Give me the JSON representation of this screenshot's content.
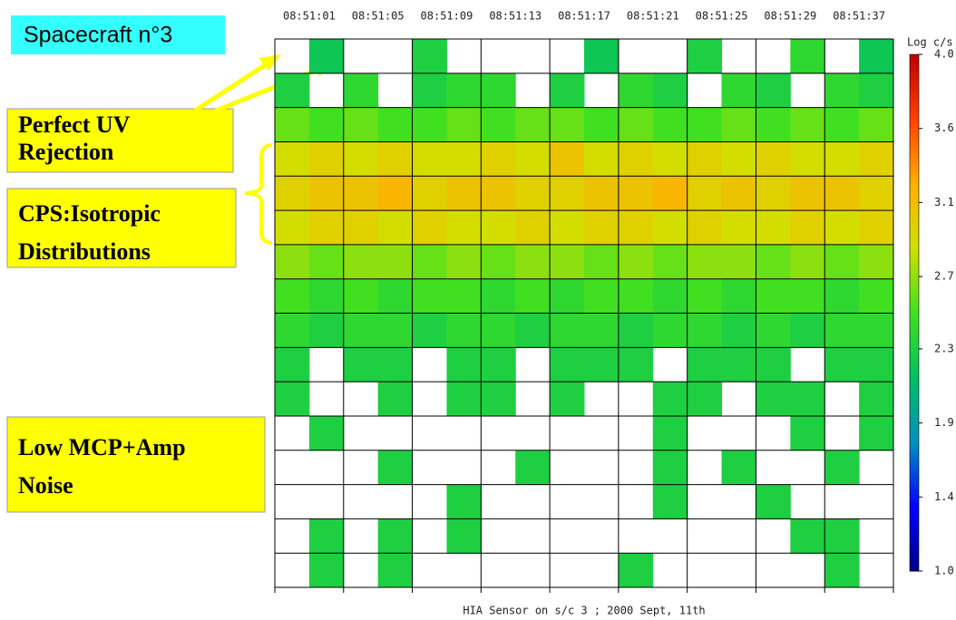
{
  "chart_data": {
    "type": "heatmap",
    "xlabel": "HIA Sensor on s/c 3 ; 2000 Sept, 11th",
    "categories": [
      "08:51:01",
      "08:51:05",
      "08:51:09",
      "08:51:13",
      "08:51:17",
      "08:51:21",
      "08:51:25",
      "08:51:29",
      "08:51:37"
    ],
    "values": [
      [
        null,
        2.2,
        null,
        null,
        2.3,
        null,
        null,
        null,
        null,
        2.2,
        null,
        null,
        2.3,
        null,
        null,
        2.4,
        null,
        2.2
      ],
      [
        2.3,
        null,
        2.4,
        null,
        2.3,
        2.4,
        2.4,
        null,
        2.3,
        null,
        2.4,
        2.3,
        null,
        2.4,
        2.3,
        null,
        2.4,
        2.3
      ],
      [
        2.6,
        2.5,
        2.6,
        2.5,
        2.5,
        2.6,
        2.5,
        2.6,
        2.6,
        2.5,
        2.6,
        2.5,
        2.5,
        2.6,
        2.5,
        2.6,
        2.5,
        2.6
      ],
      [
        2.9,
        3.0,
        2.9,
        3.0,
        2.9,
        2.9,
        3.0,
        2.9,
        3.1,
        2.9,
        3.0,
        2.9,
        3.0,
        2.9,
        3.0,
        2.9,
        2.9,
        3.0
      ],
      [
        3.0,
        3.1,
        3.1,
        3.2,
        3.0,
        3.1,
        3.1,
        3.0,
        3.0,
        3.1,
        3.1,
        3.2,
        3.0,
        3.1,
        3.0,
        3.1,
        3.1,
        3.0
      ],
      [
        2.9,
        3.0,
        3.0,
        2.9,
        3.0,
        2.9,
        2.9,
        3.0,
        2.9,
        3.0,
        3.0,
        2.9,
        3.0,
        2.9,
        2.9,
        3.0,
        2.9,
        3.0
      ],
      [
        2.7,
        2.6,
        2.7,
        2.7,
        2.6,
        2.7,
        2.6,
        2.7,
        2.7,
        2.6,
        2.7,
        2.6,
        2.7,
        2.7,
        2.6,
        2.7,
        2.6,
        2.7
      ],
      [
        2.5,
        2.4,
        2.5,
        2.4,
        2.5,
        2.5,
        2.4,
        2.5,
        2.4,
        2.5,
        2.5,
        2.4,
        2.5,
        2.4,
        2.5,
        2.5,
        2.4,
        2.5
      ],
      [
        2.4,
        2.3,
        2.4,
        2.4,
        2.3,
        2.4,
        2.4,
        2.3,
        2.4,
        2.4,
        2.3,
        2.4,
        2.4,
        2.3,
        2.4,
        2.3,
        2.4,
        2.4
      ],
      [
        2.3,
        null,
        2.3,
        2.3,
        null,
        2.3,
        2.3,
        null,
        2.3,
        2.3,
        2.3,
        null,
        2.3,
        2.3,
        2.3,
        null,
        2.3,
        2.3
      ],
      [
        2.3,
        null,
        null,
        2.3,
        null,
        2.3,
        2.3,
        null,
        2.3,
        null,
        null,
        2.3,
        2.3,
        null,
        2.3,
        2.3,
        null,
        2.3
      ],
      [
        null,
        2.3,
        null,
        null,
        null,
        null,
        null,
        null,
        null,
        null,
        null,
        2.3,
        null,
        null,
        null,
        2.3,
        null,
        2.3
      ],
      [
        null,
        null,
        null,
        2.3,
        null,
        null,
        null,
        2.3,
        null,
        null,
        null,
        2.3,
        null,
        2.3,
        null,
        null,
        2.3,
        null
      ],
      [
        null,
        null,
        null,
        null,
        null,
        2.3,
        null,
        null,
        null,
        null,
        null,
        2.3,
        null,
        null,
        2.3,
        null,
        null,
        null
      ],
      [
        null,
        2.3,
        null,
        2.3,
        null,
        2.3,
        null,
        null,
        null,
        null,
        null,
        null,
        null,
        null,
        null,
        2.3,
        2.3,
        null
      ],
      [
        null,
        2.3,
        null,
        2.3,
        null,
        null,
        null,
        null,
        null,
        null,
        2.3,
        null,
        null,
        null,
        null,
        null,
        2.3,
        null
      ]
    ],
    "colorbar_label": "Log c/s",
    "zlim": [
      1.0,
      4.0
    ],
    "zticks": [
      {
        "value": 1.0,
        "label": "1.0"
      },
      {
        "value": 1.43,
        "label": "1.4"
      },
      {
        "value": 1.86,
        "label": "1.9"
      },
      {
        "value": 2.29,
        "label": "2.3"
      },
      {
        "value": 2.71,
        "label": "2.7"
      },
      {
        "value": 3.14,
        "label": "3.1"
      },
      {
        "value": 3.57,
        "label": "3.6"
      },
      {
        "value": 4.0,
        "label": "4.0"
      }
    ],
    "colorscale": [
      "#00008b",
      "#0000ff",
      "#0090c0",
      "#00c060",
      "#40e020",
      "#d0e000",
      "#ffb000",
      "#ff4000",
      "#c00000"
    ],
    "annotations": [
      "Spacecraft n°3",
      "Perfect UV Rejection",
      "CPS:Isotropic Distributions",
      "Low MCP+Amp Noise"
    ]
  }
}
